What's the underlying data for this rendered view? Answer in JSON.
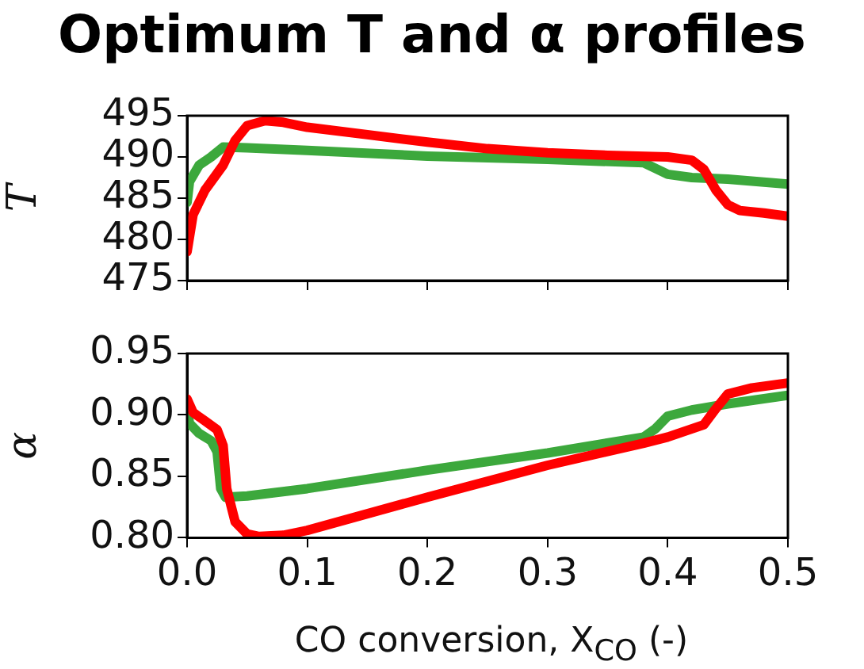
{
  "chart_data": [
    {
      "type": "line",
      "title": "Optimum T and α profiles",
      "ylabel": "T",
      "grid": false,
      "legend": false,
      "marker": "none",
      "tick_labels": "y",
      "xlim": [
        0,
        0.5
      ],
      "xticks": [
        0,
        0.1,
        0.2,
        0.3,
        0.4,
        0.5
      ],
      "ylim": [
        475,
        495
      ],
      "yticks": [
        475,
        480,
        485,
        490,
        495
      ],
      "series": [
        {
          "color": "#ff0000",
          "x": [
            0,
            0.005,
            0.015,
            0.03,
            0.04,
            0.05,
            0.065,
            0.08,
            0.1,
            0.15,
            0.2,
            0.25,
            0.3,
            0.35,
            0.4,
            0.42,
            0.43,
            0.44,
            0.45,
            0.46,
            0.48,
            0.5
          ],
          "values": [
            478.5,
            483,
            486,
            489,
            492,
            493.8,
            494.4,
            494.2,
            493.6,
            492.7,
            491.8,
            491.0,
            490.5,
            490.2,
            490.0,
            489.6,
            488.5,
            486,
            484.2,
            483.5,
            483.2,
            482.8
          ]
        },
        {
          "color": "#3ca83c",
          "x": [
            0,
            0.002,
            0.01,
            0.02,
            0.03,
            0.05,
            0.1,
            0.2,
            0.3,
            0.38,
            0.39,
            0.4,
            0.42,
            0.45,
            0.5
          ],
          "values": [
            484.5,
            487,
            489,
            490,
            491.2,
            491.1,
            490.8,
            490.1,
            489.7,
            489.3,
            488.6,
            487.9,
            487.5,
            487.3,
            486.7
          ]
        }
      ]
    },
    {
      "type": "line",
      "xlabel": "CO conversion, X$_{CO}$ (-)",
      "ylabel": "α",
      "grid": false,
      "legend": false,
      "marker": "none",
      "xlim": [
        0,
        0.5
      ],
      "xticks": [
        {
          "value": 0,
          "label": "0.0"
        },
        0.1,
        0.2,
        0.3,
        0.4,
        0.5
      ],
      "ylim": [
        0.8,
        0.95
      ],
      "yticks": [
        {
          "value": 0.8,
          "label": "0.80"
        },
        0.85,
        {
          "value": 0.9,
          "label": "0.90"
        },
        0.95
      ],
      "series": [
        {
          "color": "#ff0000",
          "x": [
            0,
            0.005,
            0.015,
            0.025,
            0.03,
            0.033,
            0.04,
            0.05,
            0.06,
            0.08,
            0.1,
            0.2,
            0.3,
            0.38,
            0.4,
            0.43,
            0.44,
            0.45,
            0.47,
            0.5
          ],
          "values": [
            0.913,
            0.902,
            0.895,
            0.888,
            0.875,
            0.84,
            0.813,
            0.803,
            0.801,
            0.802,
            0.806,
            0.833,
            0.859,
            0.877,
            0.882,
            0.892,
            0.905,
            0.917,
            0.922,
            0.926
          ]
        },
        {
          "color": "#3ca83c",
          "x": [
            0,
            0.002,
            0.01,
            0.02,
            0.025,
            0.028,
            0.032,
            0.05,
            0.1,
            0.2,
            0.3,
            0.38,
            0.39,
            0.4,
            0.42,
            0.45,
            0.5
          ],
          "values": [
            0.906,
            0.893,
            0.885,
            0.879,
            0.87,
            0.84,
            0.833,
            0.834,
            0.84,
            0.855,
            0.869,
            0.882,
            0.889,
            0.899,
            0.904,
            0.909,
            0.916
          ]
        }
      ]
    }
  ]
}
